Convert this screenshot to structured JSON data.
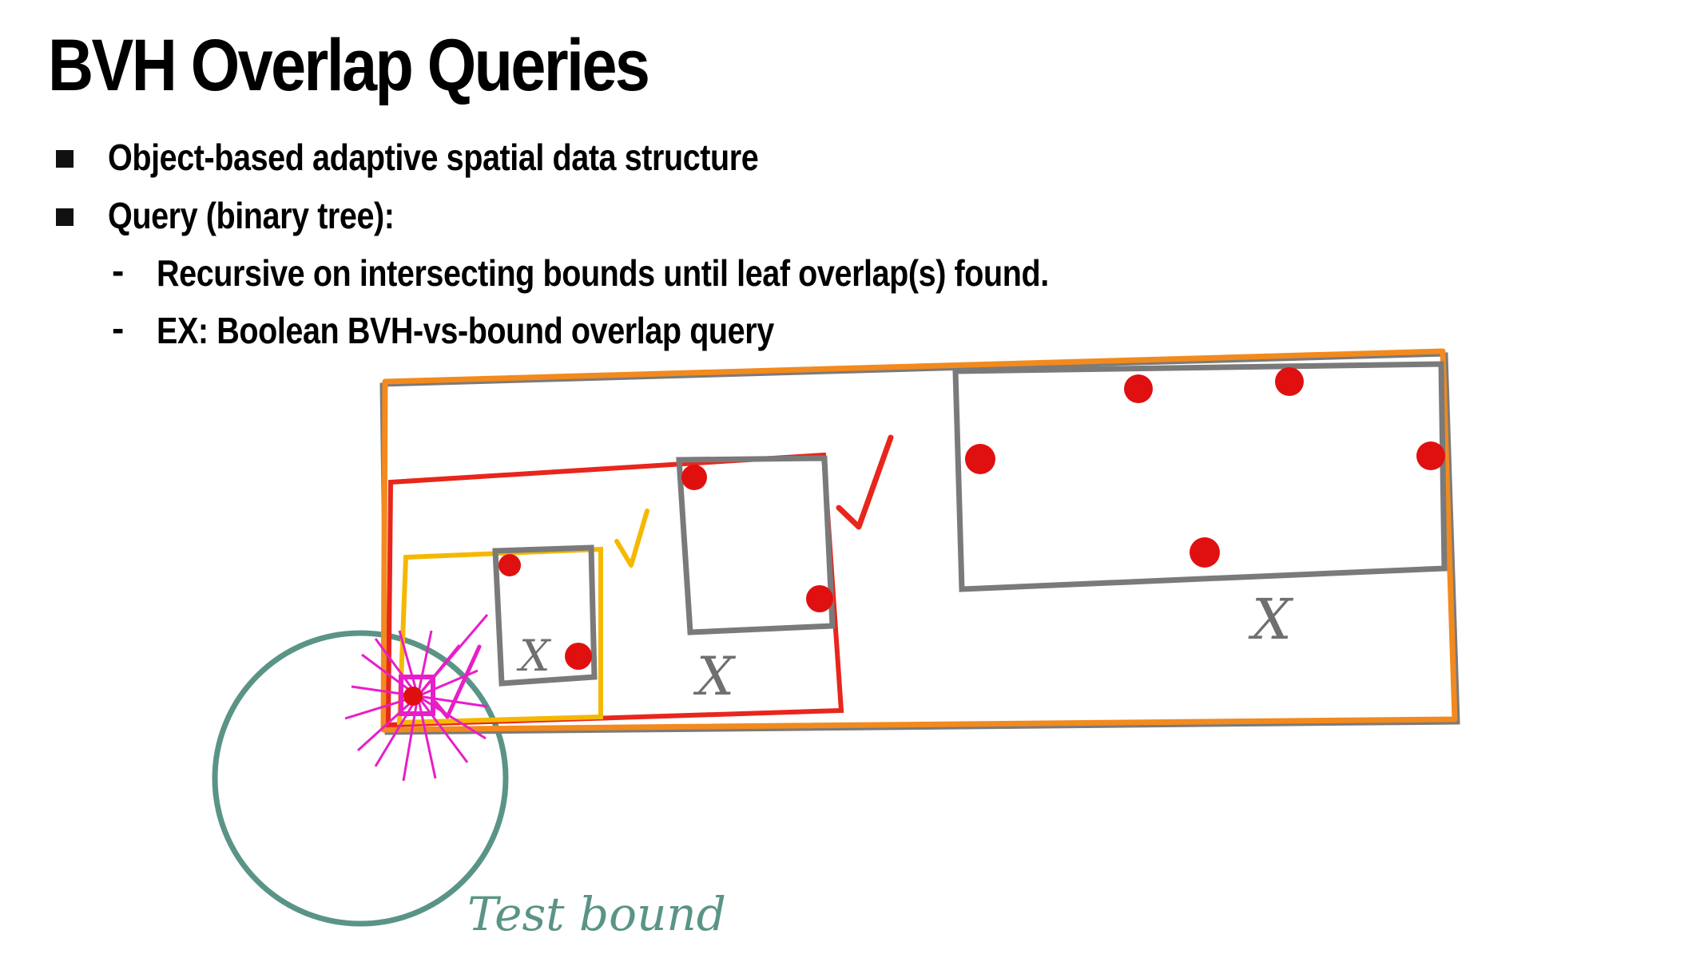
{
  "slide": {
    "title": "BVH Overlap Queries",
    "bullets": [
      {
        "level": 1,
        "text": "Object-based adaptive spatial data structure"
      },
      {
        "level": 1,
        "text": "Query (binary tree):"
      },
      {
        "level": 2,
        "text": "Recursive on intersecting bounds until leaf overlap(s) found."
      },
      {
        "level": 2,
        "text": "EX:  Boolean BVH-vs-bound overlap query"
      }
    ]
  },
  "diagram": {
    "test_bound_label": "Test bound",
    "miss_mark": "X",
    "hit_mark": "✓",
    "colors": {
      "root_box": "#f28a1e",
      "level1_box": "#e8261c",
      "level2_box": "#f5b800",
      "leaf_box": "#7a7a7a",
      "primitive": "#e01010",
      "hit_highlight": "#e81ec8",
      "test_bound": "#5a9486"
    }
  }
}
